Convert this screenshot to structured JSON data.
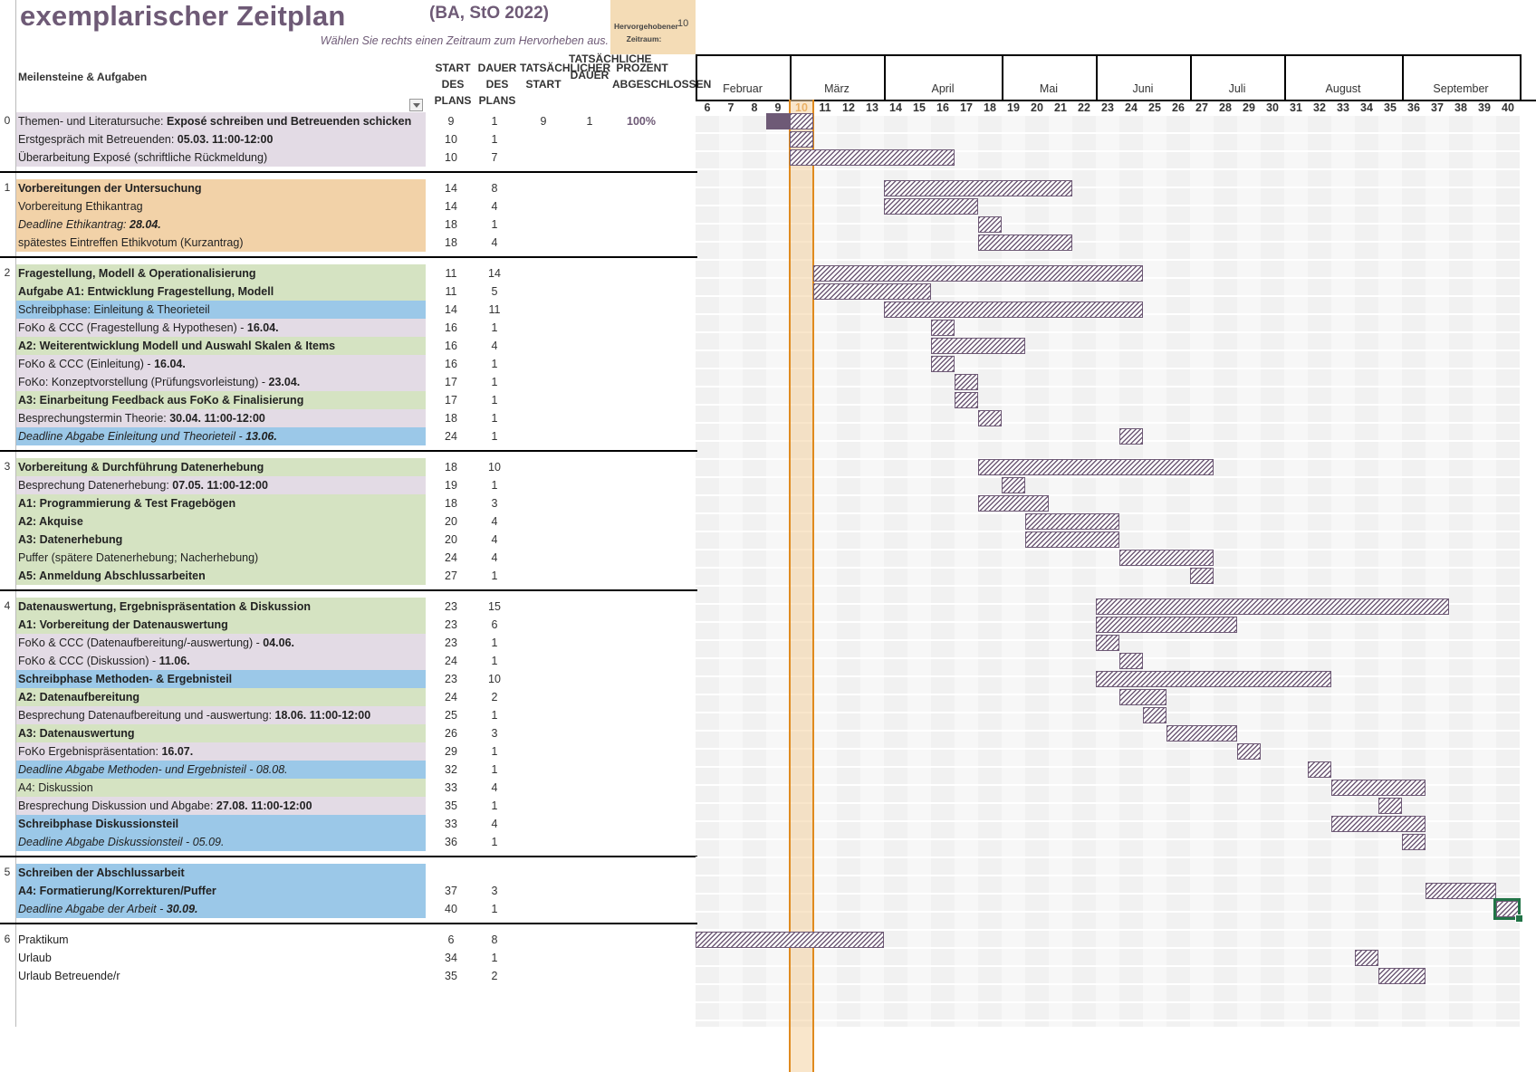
{
  "title": "exemplarischer Zeitplan",
  "subtitle": "(BA, StO 2022)",
  "hint": "Wählen Sie rechts einen Zeitraum zum Hervorheben aus.",
  "highlight": {
    "label": "Hervorgehobener Zeitraum:",
    "value": "10"
  },
  "headers": {
    "milestones": "Meilensteine & Aufgaben",
    "plan_start": "START DES PLANS",
    "plan_duration": "DAUER DES PLANS",
    "actual_start": "TATSÄCHLICHER START",
    "actual_duration": "TATSÄCHLICHE DAUER",
    "percent": "PROZENT ABGESCHLOSSEN"
  },
  "months": [
    {
      "name": "Februar",
      "start": 6,
      "end": 9
    },
    {
      "name": "März",
      "start": 10,
      "end": 13
    },
    {
      "name": "April",
      "start": 14,
      "end": 18
    },
    {
      "name": "Mai",
      "start": 19,
      "end": 22
    },
    {
      "name": "Juni",
      "start": 23,
      "end": 26
    },
    {
      "name": "Juli",
      "start": 27,
      "end": 30
    },
    {
      "name": "August",
      "start": 31,
      "end": 35
    },
    {
      "name": "September",
      "start": 36,
      "end": 40
    }
  ],
  "weeks": [
    "6",
    "7",
    "8",
    "9",
    "10",
    "11",
    "12",
    "13",
    "14",
    "15",
    "16",
    "17",
    "18",
    "19",
    "20",
    "21",
    "22",
    "23",
    "24",
    "25",
    "26",
    "27",
    "28",
    "29",
    "30",
    "31",
    "32",
    "33",
    "34",
    "35",
    "36",
    "37",
    "38",
    "39",
    "40"
  ],
  "colors": {
    "accent": "#6e5a76",
    "purple": "#e3dbe5",
    "orange": "#f2d2a8",
    "green": "#d5e3c2",
    "blue": "#9bc8e8",
    "highlight": "#e08a1e"
  },
  "rows": [
    {
      "idx": "0",
      "segs": [
        {
          "t": "Themen- und Literatursuche: "
        },
        {
          "t": "Exposé schreiben und Betreuenden schicken",
          "b": true
        }
      ],
      "start": 9,
      "dur": 1,
      "astart": "9",
      "adur": "1",
      "pct": "100%",
      "bg": "purple"
    },
    {
      "idx": "",
      "segs": [
        {
          "t": "Erstgespräch mit Betreuenden: "
        },
        {
          "t": "05.03. 11:00-12:00",
          "b": true
        }
      ],
      "start": 10,
      "dur": 1,
      "bg": "purple"
    },
    {
      "idx": "",
      "segs": [
        {
          "t": "Überarbeitung Exposé (schriftliche Rückmeldung)"
        }
      ],
      "start": 10,
      "dur": 7,
      "bg": "purple"
    },
    {
      "sep": true
    },
    {
      "idx": "1",
      "segs": [
        {
          "t": "Vorbereitungen der Untersuchung",
          "b": true
        }
      ],
      "start": 14,
      "dur": 8,
      "bg": "orange"
    },
    {
      "idx": "",
      "segs": [
        {
          "t": "Vorbereitung Ethikantrag"
        }
      ],
      "start": 14,
      "dur": 4,
      "bg": "orange"
    },
    {
      "idx": "",
      "segs": [
        {
          "t": "Deadline Ethikantrag:  "
        },
        {
          "t": "28.04.",
          "b": true
        }
      ],
      "start": 18,
      "dur": 1,
      "bg": "orange",
      "it": true
    },
    {
      "idx": "",
      "segs": [
        {
          "t": "spätestes Eintreffen Ethikvotum (Kurzantrag)"
        }
      ],
      "start": 18,
      "dur": 4,
      "bg": "orange"
    },
    {
      "sep": true
    },
    {
      "idx": "2",
      "segs": [
        {
          "t": "Fragestellung, Modell & Operationalisierung",
          "b": true
        }
      ],
      "start": 11,
      "dur": 14,
      "bg": "green"
    },
    {
      "idx": "",
      "segs": [
        {
          "t": "Aufgabe A1:  Entwicklung Fragestellung, Modell",
          "b": true
        }
      ],
      "start": 11,
      "dur": 5,
      "bg": "green"
    },
    {
      "idx": "",
      "segs": [
        {
          "t": "Schreibphase: Einleitung & Theorieteil"
        }
      ],
      "start": 14,
      "dur": 11,
      "bg": "blue"
    },
    {
      "idx": "",
      "segs": [
        {
          "t": "FoKo & CCC (Fragestellung & Hypothesen) - "
        },
        {
          "t": "16.04.",
          "b": true
        }
      ],
      "start": 16,
      "dur": 1,
      "bg": "purple"
    },
    {
      "idx": "",
      "segs": [
        {
          "t": "A2:  Weiterentwicklung Modell und Auswahl Skalen & Items",
          "b": true
        }
      ],
      "start": 16,
      "dur": 4,
      "bg": "green"
    },
    {
      "idx": "",
      "segs": [
        {
          "t": "FoKo & CCC (Einleitung) - "
        },
        {
          "t": "16.04.",
          "b": true
        }
      ],
      "start": 16,
      "dur": 1,
      "bg": "purple"
    },
    {
      "idx": "",
      "segs": [
        {
          "t": "FoKo: Konzeptvorstellung (Prüfungsvorleistung) - "
        },
        {
          "t": "23.04.",
          "b": true
        }
      ],
      "start": 17,
      "dur": 1,
      "bg": "purple"
    },
    {
      "idx": "",
      "segs": [
        {
          "t": "A3:  Einarbeitung Feedback aus FoKo & Finalisierung",
          "b": true
        }
      ],
      "start": 17,
      "dur": 1,
      "bg": "green"
    },
    {
      "idx": "",
      "segs": [
        {
          "t": "Besprechungstermin Theorie: "
        },
        {
          "t": "30.04. 11:00-12:00",
          "b": true
        }
      ],
      "start": 18,
      "dur": 1,
      "bg": "purple"
    },
    {
      "idx": "",
      "segs": [
        {
          "t": "Deadline Abgabe Einleitung und Theorieteil -  "
        },
        {
          "t": "13.06.",
          "b": true
        }
      ],
      "start": 24,
      "dur": 1,
      "bg": "blue",
      "it": true
    },
    {
      "sep": true
    },
    {
      "idx": "3",
      "segs": [
        {
          "t": "Vorbereitung & Durchführung Datenerhebung",
          "b": true
        }
      ],
      "start": 18,
      "dur": 10,
      "bg": "green"
    },
    {
      "idx": "",
      "segs": [
        {
          "t": "Besprechung Datenerhebung: "
        },
        {
          "t": "07.05. 11:00-12:00",
          "b": true
        }
      ],
      "start": 19,
      "dur": 1,
      "bg": "purple"
    },
    {
      "idx": "",
      "segs": [
        {
          "t": "A1:  Programmierung & Test Fragebögen",
          "b": true
        }
      ],
      "start": 18,
      "dur": 3,
      "bg": "green"
    },
    {
      "idx": "",
      "segs": [
        {
          "t": "A2:  Akquise",
          "b": true
        }
      ],
      "start": 20,
      "dur": 4,
      "bg": "green"
    },
    {
      "idx": "",
      "segs": [
        {
          "t": "A3:  Datenerhebung",
          "b": true
        }
      ],
      "start": 20,
      "dur": 4,
      "bg": "green"
    },
    {
      "idx": "",
      "segs": [
        {
          "t": "Puffer (spätere Datenerhebung; Nacherhebung)"
        }
      ],
      "start": 24,
      "dur": 4,
      "bg": "green"
    },
    {
      "idx": "",
      "segs": [
        {
          "t": "A5:  Anmeldung Abschlussarbeiten",
          "b": true
        }
      ],
      "start": 27,
      "dur": 1,
      "bg": "green"
    },
    {
      "sep": true
    },
    {
      "idx": "4",
      "segs": [
        {
          "t": "Datenauswertung, Ergebnispräsentation & Diskussion",
          "b": true
        }
      ],
      "start": 23,
      "dur": 15,
      "bg": "green"
    },
    {
      "idx": "",
      "segs": [
        {
          "t": "A1:  Vorbereitung der Datenauswertung",
          "b": true
        }
      ],
      "start": 23,
      "dur": 6,
      "bg": "green"
    },
    {
      "idx": "",
      "segs": [
        {
          "t": "FoKo & CCC (Datenaufbereitung/-auswertung) - "
        },
        {
          "t": "04.06.",
          "b": true
        }
      ],
      "start": 23,
      "dur": 1,
      "bg": "purple"
    },
    {
      "idx": "",
      "segs": [
        {
          "t": "FoKo & CCC (Diskussion) - "
        },
        {
          "t": "11.06.",
          "b": true
        }
      ],
      "start": 24,
      "dur": 1,
      "bg": "purple"
    },
    {
      "idx": "",
      "segs": [
        {
          "t": "Schreibphase Methoden- & Ergebnisteil",
          "b": true
        }
      ],
      "start": 23,
      "dur": 10,
      "bg": "blue"
    },
    {
      "idx": "",
      "segs": [
        {
          "t": "A2:  Datenaufbereitung",
          "b": true
        }
      ],
      "start": 24,
      "dur": 2,
      "bg": "green"
    },
    {
      "idx": "",
      "segs": [
        {
          "t": "Besprechung Datenaufbereitung und -auswertung: "
        },
        {
          "t": "18.06. 11:00-12:00",
          "b": true
        }
      ],
      "start": 25,
      "dur": 1,
      "bg": "purple"
    },
    {
      "idx": "",
      "segs": [
        {
          "t": "A3:  Datenauswertung",
          "b": true
        }
      ],
      "start": 26,
      "dur": 3,
      "bg": "green"
    },
    {
      "idx": "",
      "segs": [
        {
          "t": "FoKo Ergebnispräsentation: "
        },
        {
          "t": "16.07.",
          "b": true
        }
      ],
      "start": 29,
      "dur": 1,
      "bg": "purple"
    },
    {
      "idx": "",
      "segs": [
        {
          "t": "Deadline Abgabe Methoden- und Ergebnisteil - 08.08."
        }
      ],
      "start": 32,
      "dur": 1,
      "bg": "blue",
      "it": true
    },
    {
      "idx": "",
      "segs": [
        {
          "t": "A4:  Diskussion"
        }
      ],
      "start": 33,
      "dur": 4,
      "bg": "green"
    },
    {
      "idx": "",
      "segs": [
        {
          "t": "Bresprechung Diskussion und Abgabe: "
        },
        {
          "t": "27.08. 11:00-12:00",
          "b": true
        }
      ],
      "start": 35,
      "dur": 1,
      "bg": "purple"
    },
    {
      "idx": "",
      "segs": [
        {
          "t": "Schreibphase Diskussionsteil",
          "b": true
        }
      ],
      "start": 33,
      "dur": 4,
      "bg": "blue"
    },
    {
      "idx": "",
      "segs": [
        {
          "t": "Deadline Abgabe Diskussionsteil - 05.09."
        }
      ],
      "start": 36,
      "dur": 1,
      "bg": "blue",
      "it": true
    },
    {
      "sep": true
    },
    {
      "idx": "5",
      "segs": [
        {
          "t": "Schreiben der Abschlussarbeit",
          "b": true
        }
      ],
      "bg": "blue"
    },
    {
      "idx": "",
      "segs": [
        {
          "t": "A4:  Formatierung/Korrekturen/Puffer",
          "b": true
        }
      ],
      "start": 37,
      "dur": 3,
      "bg": "blue"
    },
    {
      "idx": "",
      "segs": [
        {
          "t": "Deadline Abgabe der Arbeit -  "
        },
        {
          "t": "30.09.",
          "b": true
        }
      ],
      "start": 40,
      "dur": 1,
      "bg": "blue",
      "it": true
    },
    {
      "sep": true
    },
    {
      "idx": "6",
      "segs": [
        {
          "t": "Praktikum"
        }
      ],
      "start": 6,
      "dur": 8,
      "bg": "white"
    },
    {
      "idx": "",
      "segs": [
        {
          "t": "Urlaub"
        }
      ],
      "start": 34,
      "dur": 1,
      "bg": "white"
    },
    {
      "idx": "",
      "segs": [
        {
          "t": "Urlaub Betreuende/r"
        }
      ],
      "start": 35,
      "dur": 2,
      "bg": "white"
    }
  ]
}
